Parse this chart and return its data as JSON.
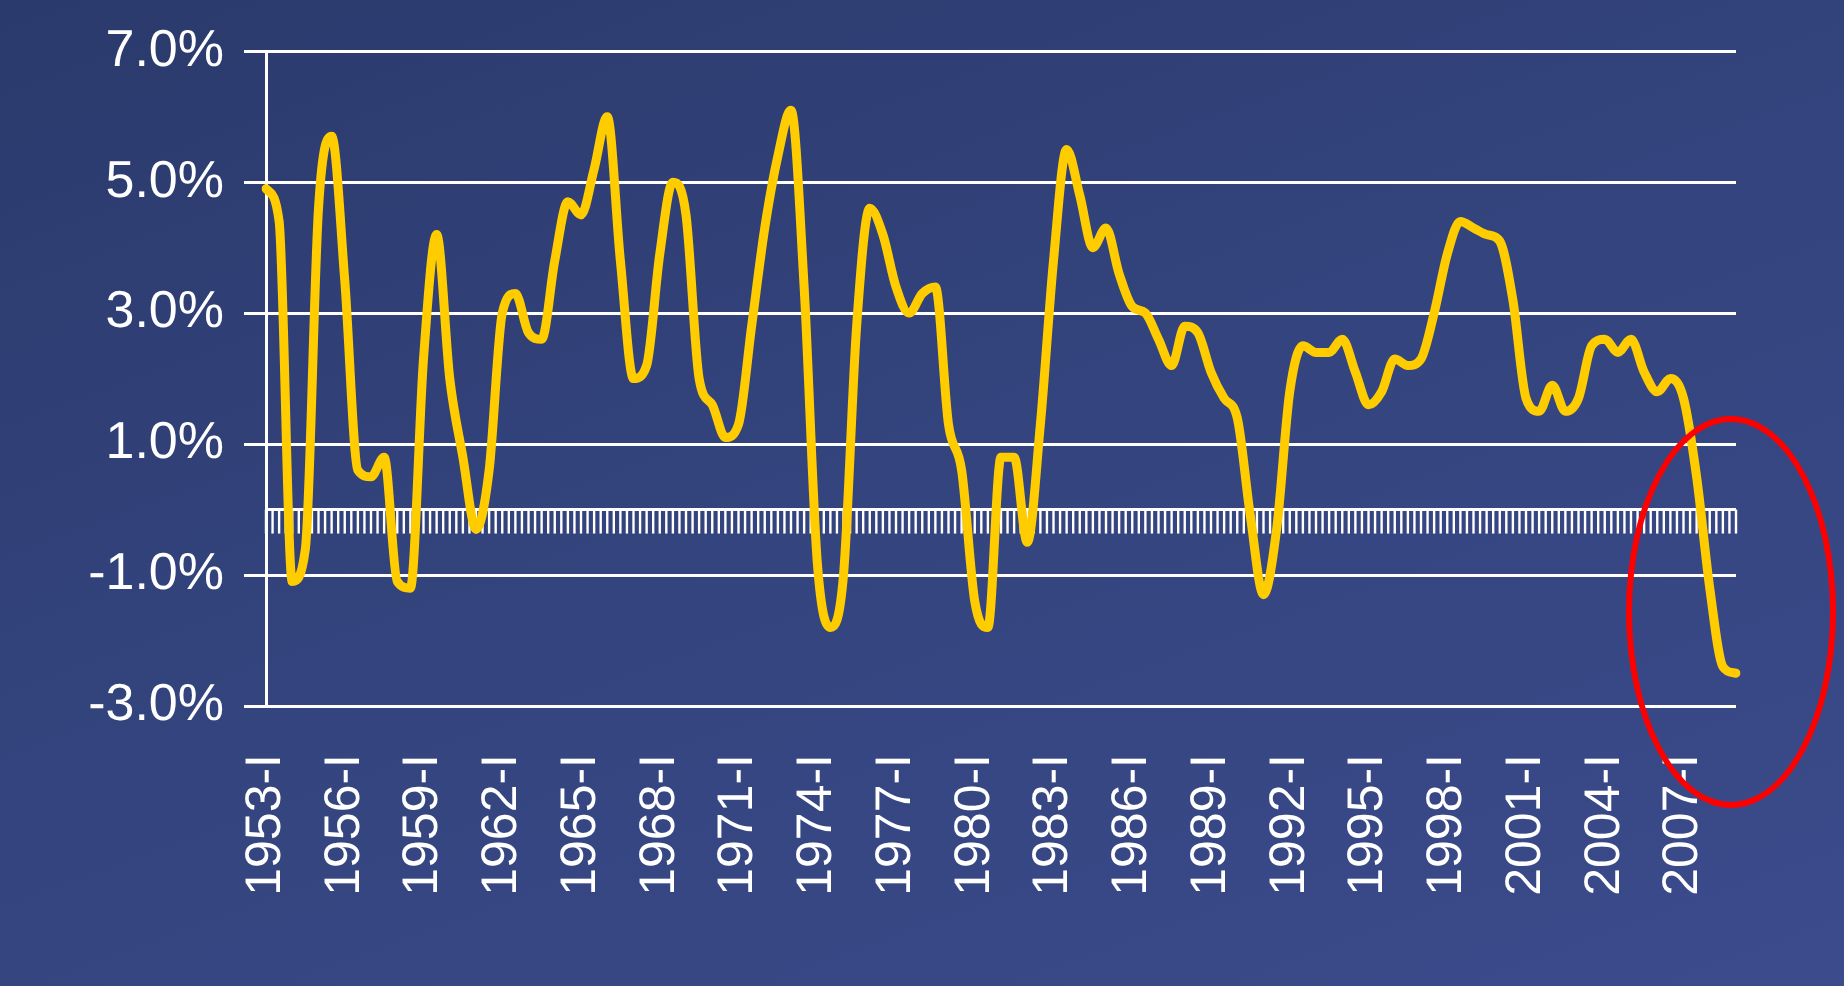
{
  "chart_data": {
    "type": "line",
    "categories": [
      "1953-I",
      null,
      null,
      null,
      null,
      null,
      "1956-I",
      null,
      null,
      null,
      null,
      null,
      "1959-I",
      null,
      null,
      null,
      null,
      null,
      "1962-I",
      null,
      null,
      null,
      null,
      null,
      "1965-I",
      null,
      null,
      null,
      null,
      null,
      "1968-I",
      null,
      null,
      null,
      null,
      null,
      "1971-I",
      null,
      null,
      null,
      null,
      null,
      "1974-I",
      null,
      null,
      null,
      null,
      null,
      "1977-I",
      null,
      null,
      null,
      null,
      null,
      "1980-I",
      null,
      null,
      null,
      null,
      null,
      "1983-I",
      null,
      null,
      null,
      null,
      null,
      "1986-I",
      null,
      null,
      null,
      null,
      null,
      "1989-I",
      null,
      null,
      null,
      null,
      null,
      "1992-I",
      null,
      null,
      null,
      null,
      null,
      "1995-I",
      null,
      null,
      null,
      null,
      null,
      "1998-I",
      null,
      null,
      null,
      null,
      null,
      "2001-I",
      null,
      null,
      null,
      null,
      null,
      "2004-I",
      null,
      null,
      null,
      null,
      null,
      "2007-I",
      null,
      null,
      null,
      null
    ],
    "series": [
      {
        "color": "#ffcc00",
        "values": [
          4.9,
          4.4,
          -1.1,
          -0.6,
          4.6,
          5.7,
          3.5,
          0.6,
          0.5,
          0.8,
          -1.1,
          -1.2,
          2.3,
          4.2,
          2.0,
          0.8,
          -0.3,
          0.6,
          3.0,
          3.3,
          2.7,
          2.6,
          3.8,
          4.7,
          4.5,
          5.2,
          6.0,
          3.8,
          2.0,
          2.2,
          3.9,
          5.0,
          4.5,
          2.0,
          1.6,
          1.1,
          1.3,
          2.8,
          4.3,
          5.4,
          6.1,
          3.4,
          -0.8,
          -1.8,
          -1.0,
          2.8,
          4.6,
          4.2,
          3.4,
          3.0,
          3.3,
          3.4,
          1.3,
          0.6,
          -1.4,
          -1.8,
          0.8,
          0.8,
          -0.5,
          1.3,
          3.8,
          5.5,
          4.8,
          4.0,
          4.3,
          3.6,
          3.1,
          3.0,
          2.6,
          2.2,
          2.8,
          2.7,
          2.1,
          1.7,
          1.4,
          -0.1,
          -1.3,
          -0.3,
          1.8,
          2.5,
          2.4,
          2.4,
          2.6,
          2.1,
          1.6,
          1.8,
          2.3,
          2.2,
          2.3,
          3.0,
          3.9,
          4.4,
          4.3,
          4.2,
          4.1,
          3.2,
          1.7,
          1.5,
          1.9,
          1.5,
          1.7,
          2.5,
          2.6,
          2.4,
          2.6,
          2.1,
          1.8,
          2.0,
          1.7,
          0.5,
          -1.2,
          -2.4,
          -2.5
        ]
      }
    ],
    "ylim": [
      -3,
      7
    ],
    "yticks": [
      {
        "value": -3,
        "label": "-3.0%"
      },
      {
        "value": -1,
        "label": "-1.0%"
      },
      {
        "value": 1,
        "label": "1.0%"
      },
      {
        "value": 3,
        "label": "3.0%"
      },
      {
        "value": 5,
        "label": "5.0%"
      },
      {
        "value": 7,
        "label": "7.0%"
      }
    ],
    "grid": "y",
    "marker": "none",
    "line_style": "solid",
    "ref_lines": [
      {
        "axis": "y",
        "value": 0,
        "color": "#ffffff"
      }
    ]
  }
}
